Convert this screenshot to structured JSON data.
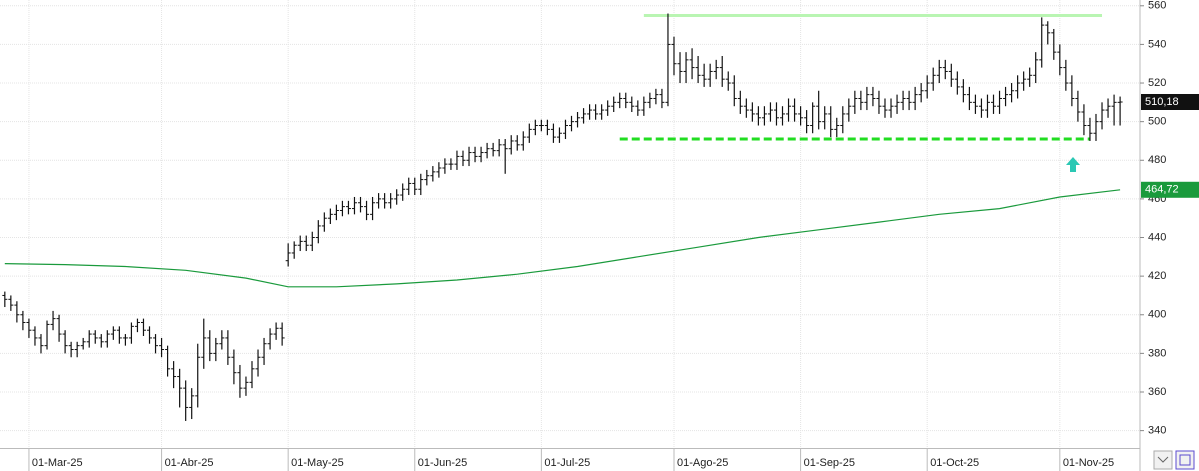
{
  "chart_data": {
    "type": "ohlc",
    "ylim": [
      331,
      563
    ],
    "yticks": [
      340,
      360,
      380,
      400,
      420,
      440,
      460,
      480,
      500,
      520,
      540,
      560
    ],
    "xlim": [
      -0.8,
      188.3
    ],
    "xticks": [
      {
        "value": 4,
        "label": "01-Mar-25"
      },
      {
        "value": 26,
        "label": "01-Abr-25"
      },
      {
        "value": 47,
        "label": "01-May-25"
      },
      {
        "value": 68,
        "label": "01-Jun-25"
      },
      {
        "value": 89,
        "label": "01-Jul-25"
      },
      {
        "value": 111,
        "label": "01-Ago-25"
      },
      {
        "value": 132,
        "label": "01-Sep-25"
      },
      {
        "value": 153,
        "label": "01-Oct-25"
      },
      {
        "value": 175,
        "label": "01-Nov-25"
      }
    ],
    "grid": true,
    "color": "#111111",
    "open": [
      410,
      408,
      405,
      400,
      396,
      392,
      388,
      384,
      395,
      398,
      390,
      384,
      382,
      384,
      386,
      390,
      388,
      386,
      390,
      392,
      388,
      388,
      394,
      396,
      392,
      388,
      384,
      382,
      372,
      368,
      362,
      352,
      358,
      378,
      388,
      380,
      385,
      388,
      378,
      370,
      362,
      365,
      372,
      378,
      385,
      390,
      393,
      428,
      432,
      436,
      438,
      436,
      440,
      446,
      450,
      452,
      454,
      456,
      455,
      458,
      456,
      452,
      458,
      460,
      458,
      460,
      462,
      465,
      468,
      465,
      470,
      472,
      474,
      476,
      478,
      478,
      482,
      480,
      484,
      482,
      484,
      486,
      485,
      488,
      486,
      490,
      488,
      492,
      496,
      498,
      498,
      496,
      492,
      494,
      498,
      500,
      502,
      504,
      506,
      504,
      506,
      508,
      510,
      512,
      510,
      508,
      506,
      510,
      512,
      514,
      510,
      540,
      530,
      526,
      532,
      528,
      524,
      522,
      526,
      528,
      522,
      520,
      512,
      508,
      506,
      504,
      502,
      504,
      506,
      502,
      504,
      508,
      504,
      502,
      498,
      508,
      500,
      504,
      496,
      498,
      504,
      508,
      512,
      510,
      514,
      512,
      508,
      506,
      508,
      510,
      512,
      510,
      514,
      516,
      520,
      524,
      528,
      526,
      522,
      518,
      514,
      510,
      508,
      506,
      510,
      508,
      512,
      514,
      516,
      520,
      522,
      524,
      532,
      550,
      546,
      536,
      528,
      520,
      512,
      505,
      498,
      494,
      500,
      506,
      508,
      510
    ],
    "high": [
      412,
      410,
      407,
      402,
      398,
      394,
      390,
      397,
      402,
      400,
      392,
      386,
      386,
      388,
      392,
      392,
      390,
      392,
      394,
      394,
      390,
      396,
      398,
      398,
      394,
      390,
      388,
      384,
      376,
      372,
      366,
      362,
      385,
      398,
      392,
      388,
      392,
      392,
      382,
      374,
      368,
      376,
      382,
      388,
      393,
      396,
      396,
      437,
      438,
      441,
      441,
      443,
      449,
      453,
      455,
      457,
      459,
      459,
      461,
      461,
      459,
      461,
      463,
      463,
      463,
      465,
      468,
      471,
      471,
      473,
      475,
      477,
      479,
      481,
      481,
      485,
      485,
      487,
      487,
      487,
      489,
      489,
      491,
      491,
      493,
      493,
      495,
      499,
      501,
      501,
      501,
      499,
      497,
      501,
      503,
      505,
      507,
      509,
      509,
      509,
      511,
      513,
      515,
      515,
      513,
      511,
      513,
      515,
      517,
      517,
      556,
      544,
      536,
      536,
      538,
      534,
      530,
      530,
      532,
      534,
      526,
      524,
      516,
      512,
      510,
      508,
      508,
      510,
      510,
      508,
      512,
      512,
      508,
      506,
      510,
      516,
      508,
      508,
      502,
      508,
      512,
      516,
      516,
      518,
      518,
      516,
      512,
      512,
      514,
      516,
      516,
      518,
      520,
      524,
      528,
      532,
      532,
      530,
      526,
      522,
      518,
      514,
      512,
      514,
      514,
      516,
      518,
      520,
      524,
      526,
      528,
      536,
      554,
      552,
      548,
      540,
      532,
      524,
      516,
      509,
      502,
      504,
      510,
      512,
      514,
      513
    ],
    "low": [
      404,
      402,
      396,
      392,
      388,
      384,
      380,
      382,
      392,
      386,
      380,
      378,
      378,
      382,
      383,
      385,
      383,
      383,
      387,
      385,
      384,
      385,
      391,
      389,
      385,
      380,
      378,
      368,
      362,
      352,
      345,
      346,
      352,
      372,
      376,
      376,
      382,
      374,
      364,
      357,
      358,
      362,
      368,
      374,
      382,
      387,
      384,
      425,
      429,
      433,
      433,
      433,
      437,
      443,
      447,
      449,
      451,
      452,
      452,
      453,
      449,
      449,
      455,
      455,
      455,
      457,
      459,
      462,
      462,
      462,
      467,
      469,
      471,
      473,
      475,
      475,
      477,
      477,
      479,
      479,
      481,
      482,
      482,
      473,
      483,
      485,
      485,
      489,
      493,
      495,
      493,
      489,
      489,
      491,
      495,
      497,
      499,
      501,
      501,
      501,
      503,
      505,
      507,
      507,
      505,
      503,
      503,
      507,
      509,
      507,
      508,
      524,
      520,
      520,
      522,
      520,
      518,
      518,
      522,
      518,
      516,
      508,
      504,
      502,
      500,
      498,
      498,
      500,
      498,
      498,
      500,
      500,
      498,
      494,
      494,
      496,
      496,
      492,
      492,
      494,
      500,
      504,
      506,
      506,
      508,
      504,
      502,
      502,
      504,
      506,
      506,
      506,
      510,
      512,
      516,
      520,
      522,
      518,
      514,
      510,
      506,
      504,
      502,
      502,
      504,
      504,
      508,
      510,
      512,
      516,
      518,
      520,
      528,
      540,
      532,
      524,
      516,
      508,
      500,
      493,
      490,
      490,
      496,
      502,
      498,
      498
    ],
    "close": [
      408,
      405,
      400,
      396,
      392,
      388,
      384,
      395,
      398,
      390,
      384,
      382,
      384,
      386,
      390,
      388,
      386,
      390,
      392,
      388,
      388,
      394,
      396,
      392,
      388,
      384,
      382,
      372,
      368,
      362,
      352,
      358,
      378,
      388,
      380,
      385,
      388,
      378,
      370,
      362,
      365,
      372,
      378,
      385,
      390,
      393,
      388,
      432,
      436,
      438,
      436,
      440,
      446,
      450,
      452,
      454,
      456,
      455,
      458,
      456,
      452,
      458,
      460,
      458,
      460,
      462,
      465,
      468,
      465,
      470,
      472,
      474,
      476,
      478,
      478,
      482,
      480,
      484,
      482,
      484,
      486,
      485,
      488,
      486,
      490,
      488,
      492,
      496,
      498,
      498,
      496,
      492,
      494,
      498,
      500,
      502,
      504,
      506,
      504,
      506,
      508,
      510,
      512,
      510,
      508,
      506,
      510,
      512,
      514,
      510,
      540,
      530,
      526,
      532,
      528,
      524,
      522,
      526,
      528,
      522,
      520,
      512,
      508,
      506,
      504,
      502,
      504,
      506,
      502,
      504,
      508,
      504,
      502,
      498,
      508,
      500,
      504,
      496,
      498,
      504,
      508,
      512,
      510,
      514,
      512,
      508,
      506,
      508,
      510,
      512,
      510,
      514,
      516,
      520,
      524,
      528,
      526,
      522,
      518,
      514,
      510,
      508,
      506,
      510,
      508,
      512,
      514,
      516,
      520,
      522,
      524,
      532,
      550,
      546,
      536,
      528,
      520,
      512,
      505,
      498,
      494,
      500,
      506,
      508,
      510,
      510.18
    ],
    "last_price_label": "510,18",
    "moving_average": {
      "color": "#1a9a3c",
      "x": [
        0,
        10,
        20,
        30,
        40,
        47,
        55,
        65,
        75,
        85,
        95,
        105,
        115,
        125,
        135,
        145,
        155,
        165,
        175,
        185
      ],
      "values": [
        426.5,
        426,
        425,
        423,
        419,
        414.5,
        414.5,
        416,
        418,
        421,
        425,
        430,
        435,
        440,
        444,
        448,
        452,
        455,
        461,
        464.72
      ],
      "value_label": "464,72"
    },
    "levels": [
      {
        "value": 555,
        "from": 106,
        "to": 182,
        "color": "#b9f5b2",
        "style": "solid"
      },
      {
        "value": 491,
        "from": 102,
        "to": 180,
        "color": "#22dd22",
        "style": "dashed"
      }
    ]
  }
}
